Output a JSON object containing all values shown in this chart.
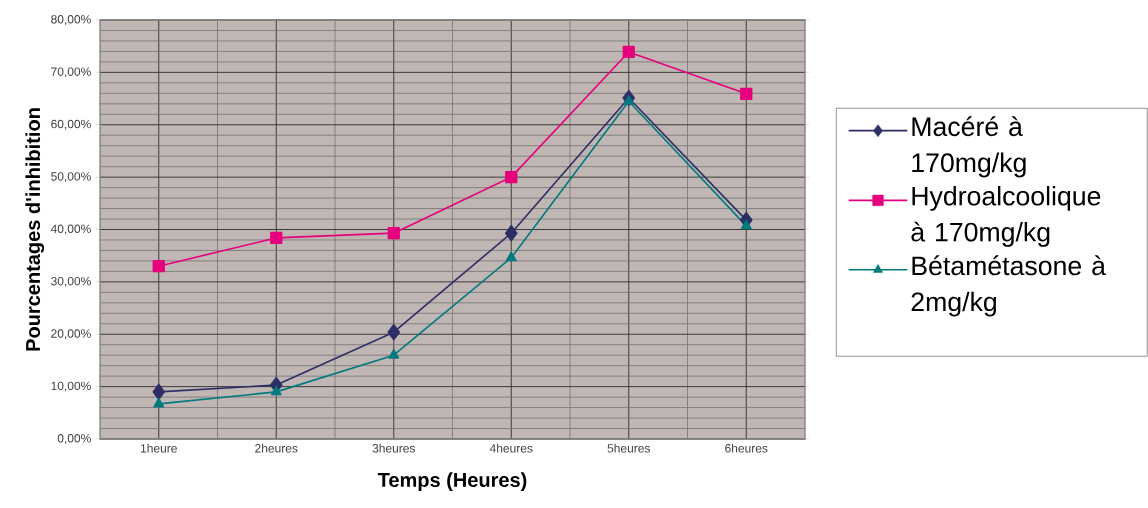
{
  "chart_data": {
    "type": "line",
    "xlabel": "Temps (Heures)",
    "ylabel": "Pourcentages d'inhibition",
    "categories": [
      "1heure",
      "2heures",
      "3heures",
      "4heures",
      "5heures",
      "6heures"
    ],
    "series": [
      {
        "name": "Macéré à 170mg/kg",
        "color": "#2e2e66",
        "marker": "diamond",
        "values": [
          9.0,
          10.3,
          20.4,
          39.3,
          65.1,
          41.8
        ]
      },
      {
        "name": "Hydroalcoolique à 170mg/kg",
        "color": "#e6007e",
        "marker": "square",
        "values": [
          33.0,
          38.4,
          39.3,
          50.0,
          73.9,
          65.9
        ]
      },
      {
        "name": "Bétamétasone à 2mg/kg",
        "color": "#007a7f",
        "marker": "triangle",
        "values": [
          6.7,
          9.0,
          16.0,
          34.6,
          64.5,
          40.7
        ]
      }
    ],
    "ylim": [
      0,
      80
    ],
    "yticks": [
      {
        "value": 0,
        "label": "0,00%"
      },
      {
        "value": 10,
        "label": "10,00%"
      },
      {
        "value": 20,
        "label": "20,00%"
      },
      {
        "value": 30,
        "label": "30,00%"
      },
      {
        "value": 40,
        "label": "40,00%"
      },
      {
        "value": 50,
        "label": "50,00%"
      },
      {
        "value": 60,
        "label": "60,00%"
      },
      {
        "value": 70,
        "label": "70,00%"
      },
      {
        "value": 80,
        "label": "80,00%"
      }
    ],
    "grid": true,
    "legend": "right",
    "line_style": "solid"
  }
}
